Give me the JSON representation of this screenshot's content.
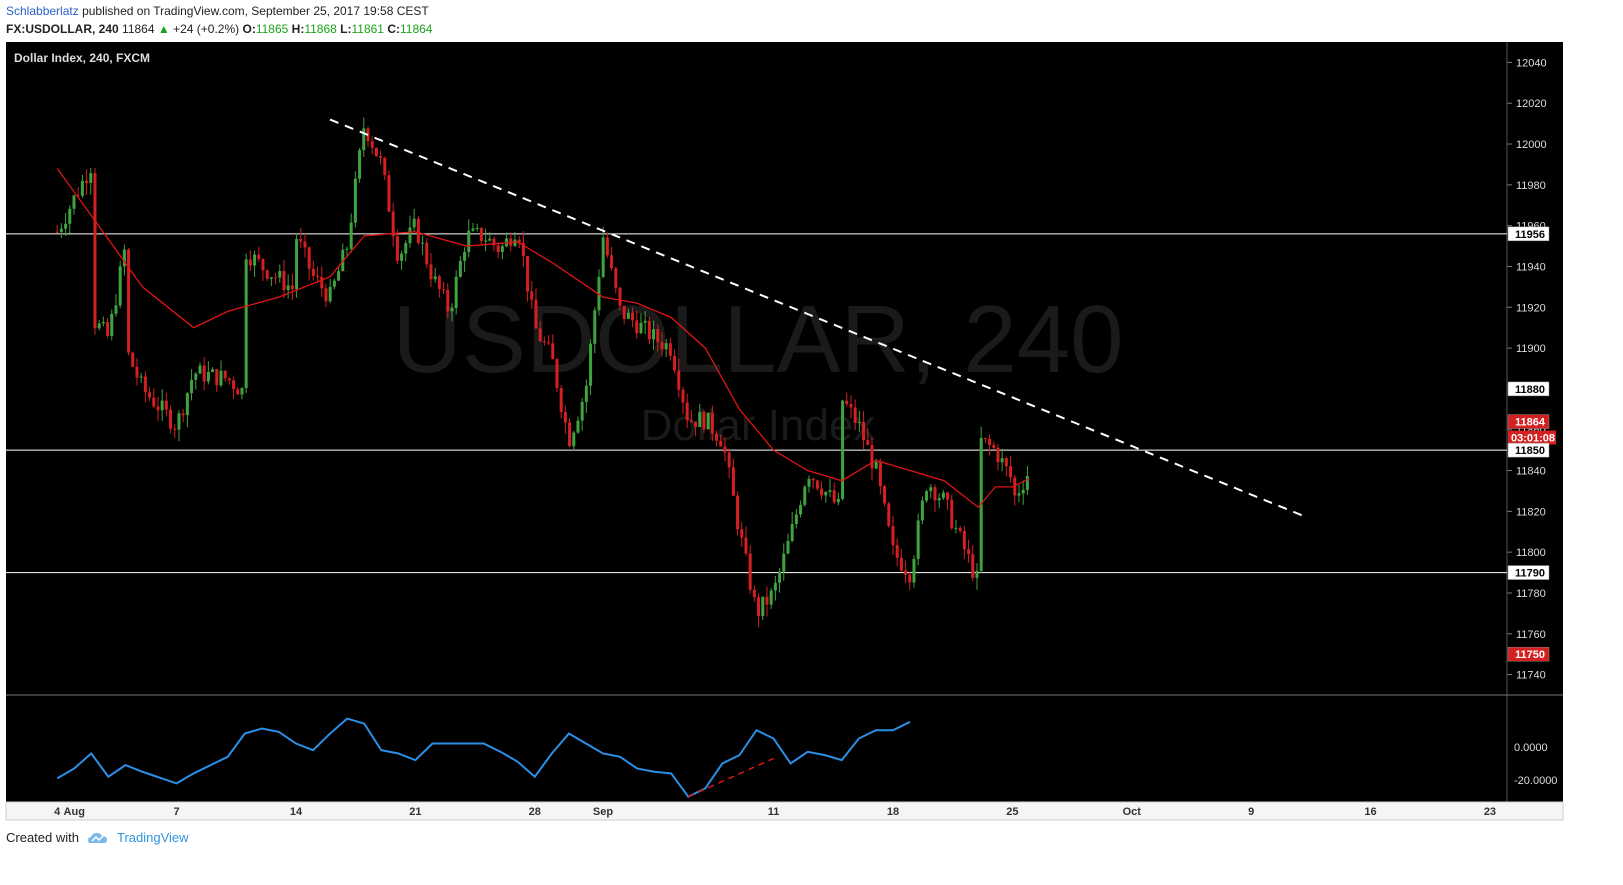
{
  "header": {
    "author": "Schlabberlatz",
    "published_text": "published on TradingView.com, September 25, 2017 19:58 CEST",
    "symbol": "FX:USDOLLAR, 240",
    "last": "11864",
    "change": "+24 (+0.2%)",
    "open_label": "O:",
    "open": "11865",
    "high_label": "H:",
    "high": "11868",
    "low_label": "L:",
    "low": "11861",
    "close_label": "C:",
    "close": "11864"
  },
  "footer": {
    "created_with": "Created with",
    "brand": "TradingView"
  },
  "colors": {
    "background": "#000000",
    "up_candle": "#3fa33f",
    "down_candle": "#d42020",
    "moving_average": "#e01515",
    "oscillator": "#2b8fe6",
    "trendline": "#ffffff",
    "divergence": "#e01515",
    "price_badge": "#d42020",
    "level_line": "#ffffff"
  },
  "chart_data": {
    "type": "candlestick",
    "title": "Dollar Index, 240, FXCM",
    "watermark": "USDOLLAR, 240",
    "watermark_sub": "Dollar Index",
    "ylim": [
      11730,
      12050
    ],
    "yticks": [
      11740,
      11760,
      11780,
      11800,
      11820,
      11840,
      11860,
      11880,
      11900,
      11920,
      11940,
      11960,
      11980,
      12000,
      12020,
      12040
    ],
    "x_tick_labels": [
      "4",
      "Aug",
      "7",
      "14",
      "21",
      "28",
      "Sep",
      "11",
      "18",
      "25",
      "Oct",
      "9",
      "16",
      "23"
    ],
    "horizontal_levels": [
      11956,
      11850,
      11790
    ],
    "level_labels": [
      "11956",
      "11880",
      "11864",
      "11850",
      "11790",
      "11750"
    ],
    "countdown": "03:01:08",
    "current_price": 11864,
    "trendline": {
      "start": {
        "date": "2017-08-16",
        "price": 12012
      },
      "end": {
        "date": "2017-10-12",
        "price": 11818
      }
    },
    "price_path": [
      [
        "2017-07-31",
        11957
      ],
      [
        "2017-08-02",
        11990
      ],
      [
        "2017-08-02",
        11915
      ],
      [
        "2017-08-03",
        11905
      ],
      [
        "2017-08-04",
        11950
      ],
      [
        "2017-08-04",
        11900
      ],
      [
        "2017-08-05",
        11880
      ],
      [
        "2017-08-07",
        11862
      ],
      [
        "2017-08-08",
        11888
      ],
      [
        "2017-08-10",
        11885
      ],
      [
        "2017-08-11",
        11878
      ],
      [
        "2017-08-11",
        11948
      ],
      [
        "2017-08-12",
        11940
      ],
      [
        "2017-08-14",
        11928
      ],
      [
        "2017-08-14",
        11955
      ],
      [
        "2017-08-15",
        11935
      ],
      [
        "2017-08-16",
        11925
      ],
      [
        "2017-08-17",
        11950
      ],
      [
        "2017-08-18",
        12010
      ],
      [
        "2017-08-19",
        11990
      ],
      [
        "2017-08-20",
        11945
      ],
      [
        "2017-08-21",
        11960
      ],
      [
        "2017-08-22",
        11935
      ],
      [
        "2017-08-23",
        11918
      ],
      [
        "2017-08-24",
        11955
      ],
      [
        "2017-08-25",
        11955
      ],
      [
        "2017-08-26",
        11948
      ],
      [
        "2017-08-27",
        11960
      ],
      [
        "2017-08-28",
        11910
      ],
      [
        "2017-08-29",
        11895
      ],
      [
        "2017-08-30",
        11855
      ],
      [
        "2017-08-31",
        11880
      ],
      [
        "2017-09-01",
        11955
      ],
      [
        "2017-09-02",
        11918
      ],
      [
        "2017-09-03",
        11912
      ],
      [
        "2017-09-04",
        11905
      ],
      [
        "2017-09-05",
        11900
      ],
      [
        "2017-09-06",
        11865
      ],
      [
        "2017-09-07",
        11865
      ],
      [
        "2017-09-08",
        11855
      ],
      [
        "2017-09-09",
        11810
      ],
      [
        "2017-09-10",
        11770
      ],
      [
        "2017-09-11",
        11780
      ],
      [
        "2017-09-12",
        11808
      ],
      [
        "2017-09-13",
        11840
      ],
      [
        "2017-09-14",
        11830
      ],
      [
        "2017-09-15",
        11820
      ],
      [
        "2017-09-15",
        11875
      ],
      [
        "2017-09-16",
        11862
      ],
      [
        "2017-09-17",
        11840
      ],
      [
        "2017-09-18",
        11800
      ],
      [
        "2017-09-19",
        11790
      ],
      [
        "2017-09-20",
        11835
      ],
      [
        "2017-09-21",
        11825
      ],
      [
        "2017-09-22",
        11805
      ],
      [
        "2017-09-23",
        11785
      ],
      [
        "2017-09-23",
        11855
      ],
      [
        "2017-09-24",
        11850
      ],
      [
        "2017-09-25",
        11835
      ],
      [
        "2017-09-25",
        11825
      ],
      [
        "2017-09-26",
        11840
      ],
      [
        "2017-09-26",
        11864
      ]
    ],
    "moving_average": [
      [
        "2017-07-31",
        11988
      ],
      [
        "2017-08-02",
        11965
      ],
      [
        "2017-08-05",
        11930
      ],
      [
        "2017-08-08",
        11910
      ],
      [
        "2017-08-10",
        11918
      ],
      [
        "2017-08-13",
        11925
      ],
      [
        "2017-08-16",
        11935
      ],
      [
        "2017-08-18",
        11955
      ],
      [
        "2017-08-21",
        11957
      ],
      [
        "2017-08-24",
        11950
      ],
      [
        "2017-08-27",
        11952
      ],
      [
        "2017-08-29",
        11942
      ],
      [
        "2017-09-01",
        11925
      ],
      [
        "2017-09-03",
        11922
      ],
      [
        "2017-09-05",
        11915
      ],
      [
        "2017-09-07",
        11900
      ],
      [
        "2017-09-09",
        11870
      ],
      [
        "2017-09-11",
        11850
      ],
      [
        "2017-09-13",
        11840
      ],
      [
        "2017-09-15",
        11835
      ],
      [
        "2017-09-17",
        11845
      ],
      [
        "2017-09-19",
        11840
      ],
      [
        "2017-09-21",
        11835
      ],
      [
        "2017-09-23",
        11822
      ],
      [
        "2017-09-24",
        11832
      ],
      [
        "2017-09-25",
        11832
      ],
      [
        "2017-09-26",
        11836
      ]
    ],
    "oscillator": {
      "ylim": [
        -32,
        30
      ],
      "yticks": [
        0,
        -20
      ],
      "ytick_labels": [
        "0.0000",
        "-20.0000"
      ],
      "values": [
        [
          "2017-07-31",
          -19
        ],
        [
          "2017-08-01",
          -13
        ],
        [
          "2017-08-02",
          -4
        ],
        [
          "2017-08-03",
          -18
        ],
        [
          "2017-08-04",
          -11
        ],
        [
          "2017-08-05",
          -15
        ],
        [
          "2017-08-07",
          -22
        ],
        [
          "2017-08-08",
          -16
        ],
        [
          "2017-08-10",
          -6
        ],
        [
          "2017-08-11",
          8
        ],
        [
          "2017-08-12",
          11
        ],
        [
          "2017-08-13",
          9
        ],
        [
          "2017-08-14",
          2
        ],
        [
          "2017-08-15",
          -2
        ],
        [
          "2017-08-16",
          8
        ],
        [
          "2017-08-17",
          17
        ],
        [
          "2017-08-18",
          14
        ],
        [
          "2017-08-19",
          -2
        ],
        [
          "2017-08-20",
          -4
        ],
        [
          "2017-08-21",
          -8
        ],
        [
          "2017-08-22",
          2
        ],
        [
          "2017-08-24",
          2
        ],
        [
          "2017-08-25",
          2
        ],
        [
          "2017-08-26",
          -3
        ],
        [
          "2017-08-27",
          -9
        ],
        [
          "2017-08-28",
          -18
        ],
        [
          "2017-08-29",
          -4
        ],
        [
          "2017-08-30",
          8
        ],
        [
          "2017-08-31",
          2
        ],
        [
          "2017-09-01",
          -4
        ],
        [
          "2017-09-02",
          -6
        ],
        [
          "2017-09-03",
          -13
        ],
        [
          "2017-09-04",
          -15
        ],
        [
          "2017-09-05",
          -16
        ],
        [
          "2017-09-06",
          -30
        ],
        [
          "2017-09-07",
          -25
        ],
        [
          "2017-09-08",
          -10
        ],
        [
          "2017-09-09",
          -5
        ],
        [
          "2017-09-10",
          10
        ],
        [
          "2017-09-11",
          5
        ],
        [
          "2017-09-12",
          -10
        ],
        [
          "2017-09-13",
          -3
        ],
        [
          "2017-09-14",
          -5
        ],
        [
          "2017-09-15",
          -8
        ],
        [
          "2017-09-16",
          5
        ],
        [
          "2017-09-17",
          10
        ],
        [
          "2017-09-18",
          10
        ],
        [
          "2017-09-19",
          15
        ]
      ]
    },
    "divergence": {
      "start": {
        "date": "2017-09-06",
        "value": -30
      },
      "end": {
        "date": "2017-09-11",
        "value": -7
      }
    }
  }
}
